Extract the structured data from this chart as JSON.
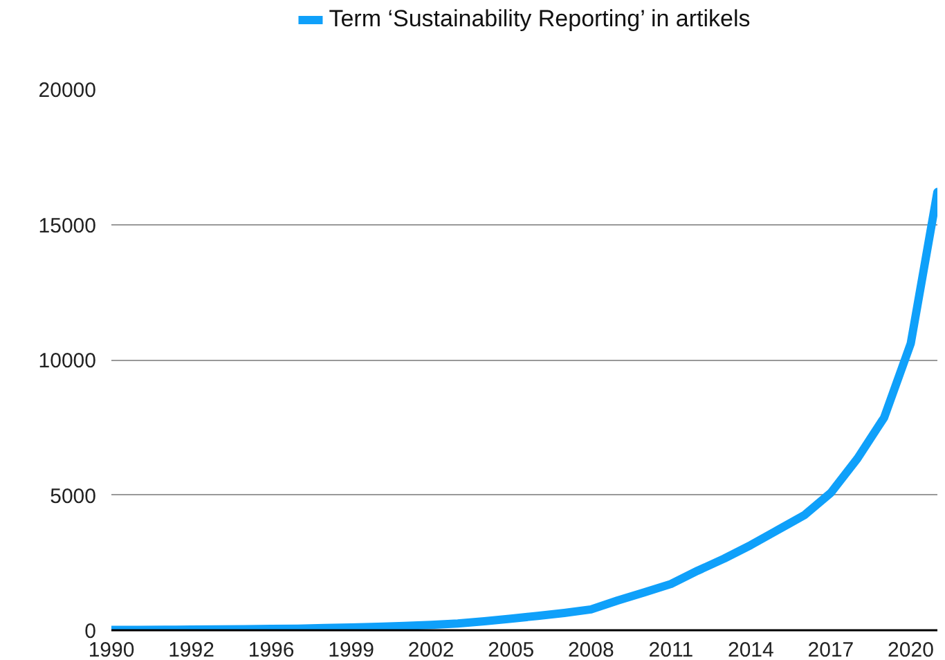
{
  "chart_data": {
    "type": "line",
    "categories": [
      "1990",
      null,
      null,
      "1992",
      null,
      null,
      "1996",
      null,
      null,
      "1999",
      null,
      null,
      "2002",
      null,
      null,
      "2005",
      null,
      null,
      "2008",
      null,
      null,
      "2011",
      null,
      null,
      "2014",
      null,
      null,
      "2017",
      null,
      null,
      "2020",
      null
    ],
    "series": [
      {
        "name": "Term ‘Sustainability Reporting’ in artikels",
        "color": "#0fa0fa",
        "values": [
          10,
          15,
          20,
          25,
          30,
          40,
          50,
          60,
          80,
          100,
          130,
          160,
          200,
          250,
          330,
          430,
          530,
          640,
          770,
          1100,
          1400,
          1710,
          2200,
          2650,
          3150,
          3700,
          4250,
          5080,
          6350,
          7860,
          10600,
          16200
        ]
      }
    ],
    "ylim": [
      0,
      20000
    ],
    "yticks": [
      0,
      5000,
      10000,
      15000,
      20000
    ],
    "grid": "y",
    "legend": "top",
    "marker": "none",
    "line_style": "solid"
  }
}
